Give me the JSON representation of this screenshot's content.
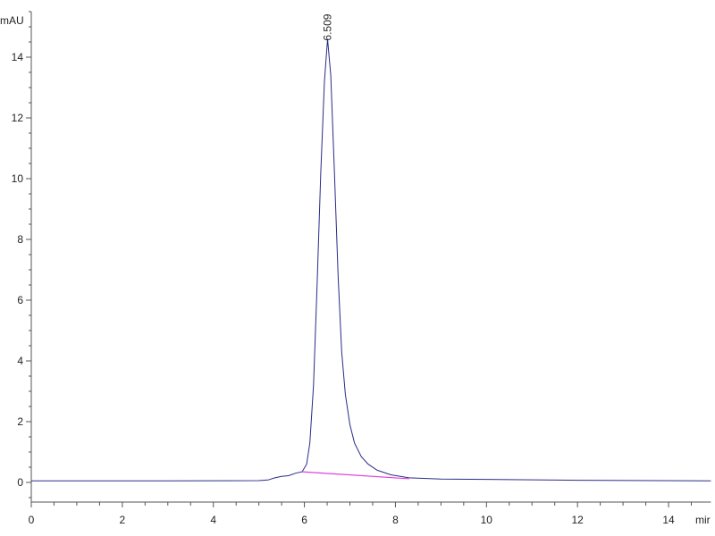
{
  "chart_data": {
    "type": "line",
    "title": "",
    "xlabel": "mir",
    "ylabel": "mAU",
    "xlim": [
      0,
      14.93
    ],
    "ylim": [
      -0.65,
      15.5
    ],
    "xticks": [
      0,
      2,
      4,
      6,
      8,
      10,
      12,
      14
    ],
    "yticks": [
      0,
      2,
      4,
      6,
      8,
      10,
      12,
      14
    ],
    "grid": false,
    "colors": {
      "trace": "#2a2a8a",
      "baseline": "#e040e0",
      "axis": "#555555"
    },
    "series": [
      {
        "x": [
          0,
          3,
          5.0,
          5.2,
          5.35,
          5.5,
          5.65,
          5.8,
          5.95,
          6.05,
          6.12,
          6.2,
          6.28,
          6.36,
          6.44,
          6.509,
          6.58,
          6.66,
          6.74,
          6.82,
          6.9,
          7.0,
          7.1,
          7.25,
          7.4,
          7.6,
          7.9,
          8.3,
          9,
          10,
          12,
          15
        ],
        "y": [
          0.05,
          0.05,
          0.06,
          0.08,
          0.15,
          0.2,
          0.22,
          0.3,
          0.35,
          0.6,
          1.3,
          3.2,
          6.5,
          10.2,
          13.2,
          14.6,
          13.4,
          10.2,
          6.8,
          4.3,
          2.9,
          1.9,
          1.3,
          0.85,
          0.6,
          0.4,
          0.25,
          0.15,
          0.11,
          0.1,
          0.07,
          0.05
        ]
      }
    ],
    "baseline": {
      "x": [
        5.95,
        8.3
      ],
      "y": [
        0.35,
        0.12
      ]
    },
    "annotations": [
      {
        "text": "6.509",
        "x": 6.509,
        "y": 14.6
      }
    ]
  }
}
